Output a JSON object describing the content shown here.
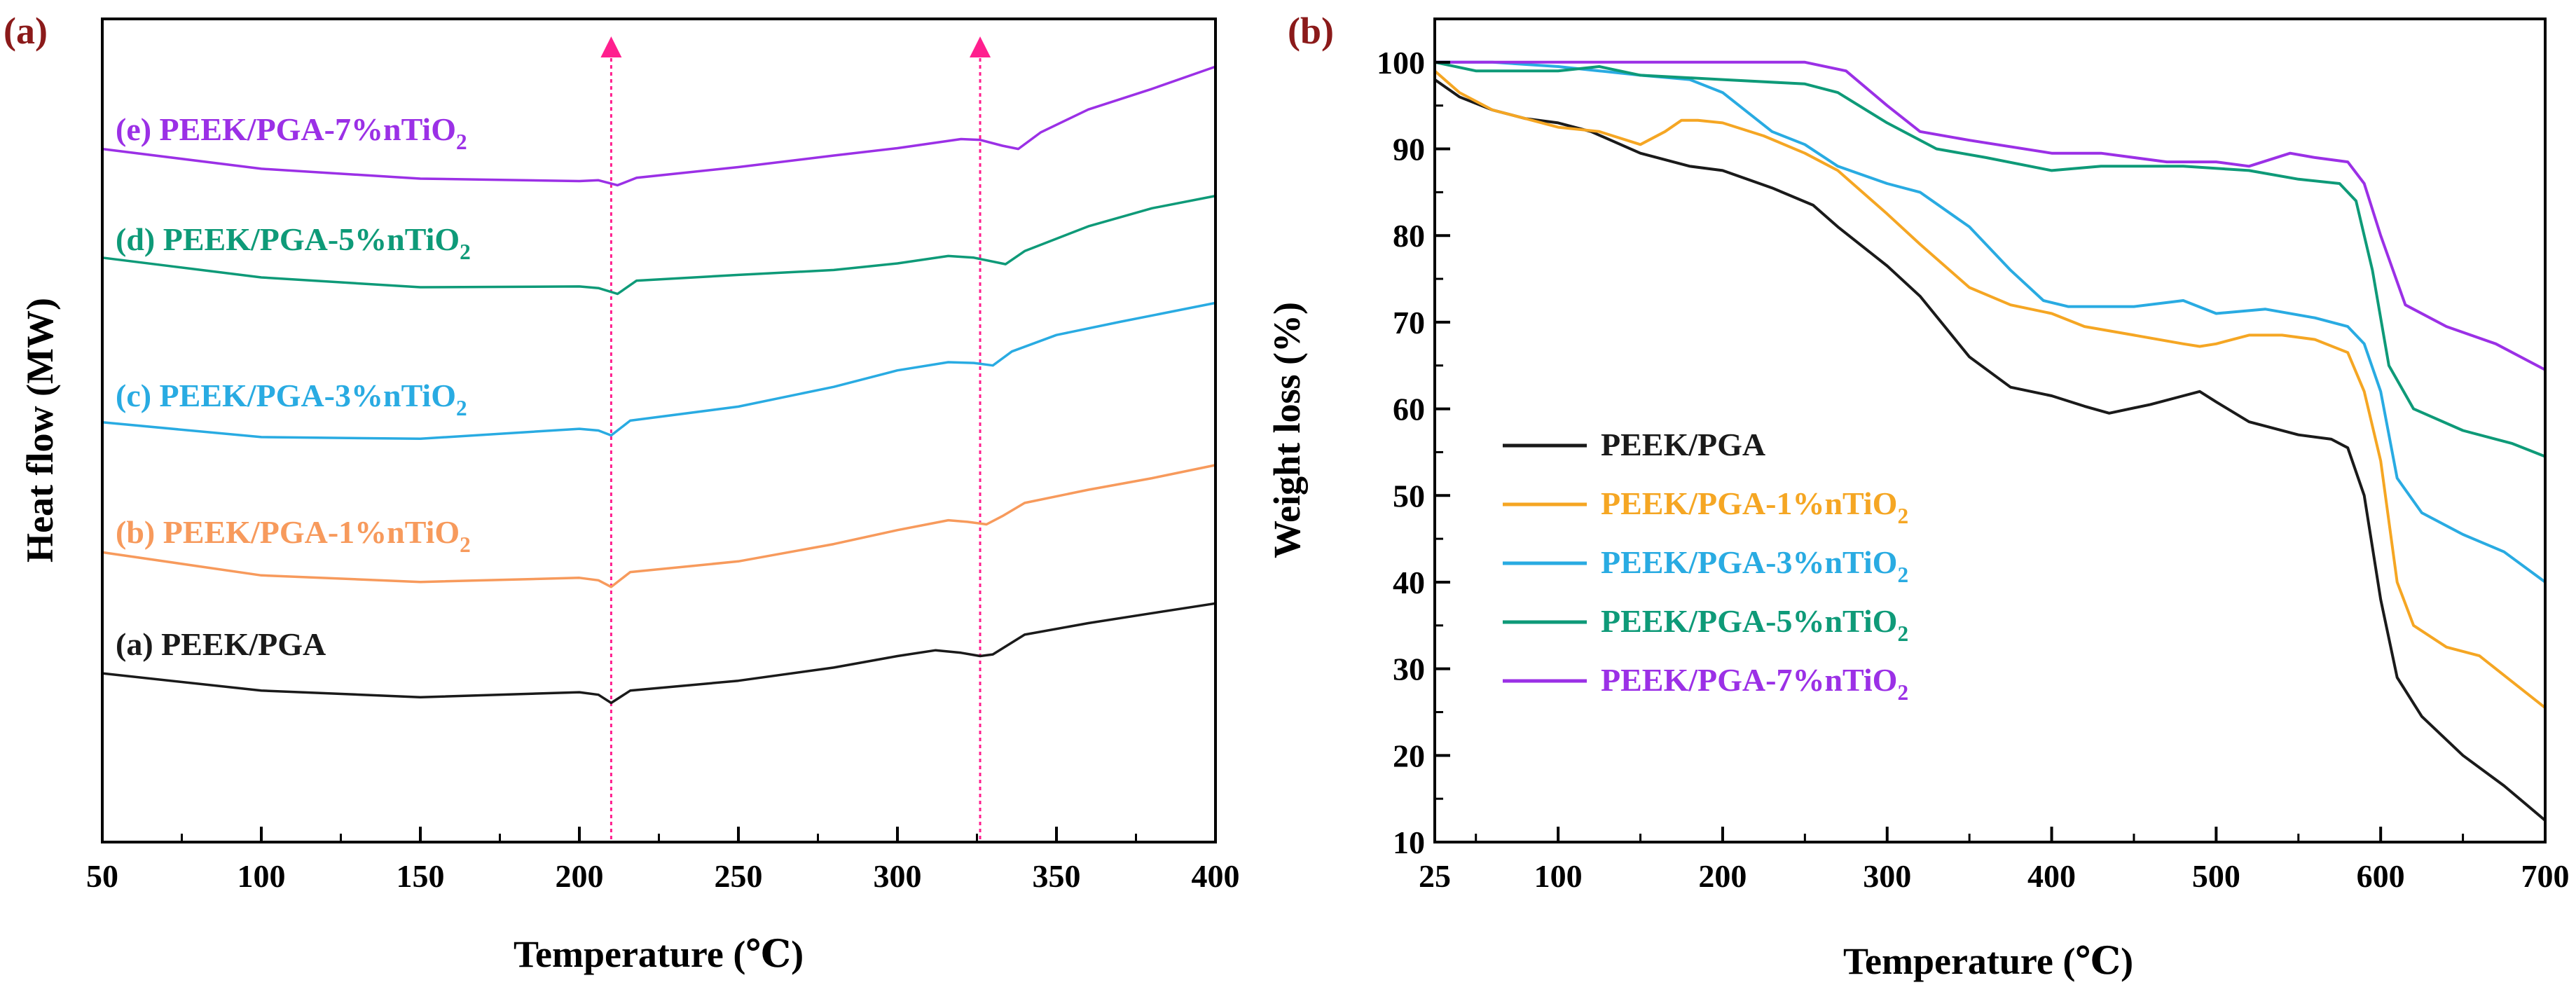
{
  "colors": {
    "black": "#1a1a1a",
    "orange": "#f5a623",
    "orange_dsc": "#f79a5c",
    "cyan": "#29abe2",
    "green": "#0e9a78",
    "purple": "#9b30e6",
    "panel_label": "#8b1a1a",
    "marker": "#ff1f8e"
  },
  "chart_data": [
    {
      "id": "a",
      "panel_label": "(a)",
      "type": "line",
      "title": "",
      "xlabel": "Temperature (℃)",
      "ylabel": "Heat flow (MW)",
      "xlim": [
        50,
        400
      ],
      "ylim": [
        0,
        100
      ],
      "xticks": [
        50,
        100,
        150,
        200,
        250,
        300,
        350,
        400
      ],
      "xtick_labels": [
        "50",
        "100",
        "150",
        "200",
        "250",
        "300",
        "350",
        "400"
      ],
      "yticks_shown": false,
      "markers": [
        210,
        326
      ],
      "series": [
        {
          "name": "(a) PEEK/PGA",
          "label_main": "(a) PEEK/PGA",
          "label_sub": "",
          "color": "black",
          "points": [
            [
              50,
              20.5
            ],
            [
              100,
              18.4
            ],
            [
              150,
              17.6
            ],
            [
              200,
              18.2
            ],
            [
              206,
              17.9
            ],
            [
              210,
              16.9
            ],
            [
              216,
              18.4
            ],
            [
              250,
              19.6
            ],
            [
              280,
              21.2
            ],
            [
              300,
              22.6
            ],
            [
              312,
              23.3
            ],
            [
              320,
              23.0
            ],
            [
              326,
              22.6
            ],
            [
              330,
              22.8
            ],
            [
              340,
              25.2
            ],
            [
              360,
              26.6
            ],
            [
              380,
              27.8
            ],
            [
              400,
              29.0
            ]
          ],
          "label_at": [
            54,
            75.5
          ]
        },
        {
          "name": "(b) PEEK/PGA-1%nTiO2",
          "label_main": "(b) PEEK/PGA-1%nTiO",
          "label_sub": "2",
          "color": "orange_dsc",
          "points": [
            [
              50,
              35.2
            ],
            [
              100,
              32.4
            ],
            [
              150,
              31.6
            ],
            [
              200,
              32.1
            ],
            [
              206,
              31.8
            ],
            [
              210,
              31.0
            ],
            [
              216,
              32.8
            ],
            [
              250,
              34.1
            ],
            [
              280,
              36.2
            ],
            [
              300,
              37.9
            ],
            [
              316,
              39.1
            ],
            [
              322,
              38.9
            ],
            [
              328,
              38.6
            ],
            [
              333,
              39.6
            ],
            [
              340,
              41.2
            ],
            [
              360,
              42.8
            ],
            [
              380,
              44.2
            ],
            [
              400,
              45.8
            ]
          ],
          "label_at": [
            54,
            60.2
          ]
        },
        {
          "name": "(c) PEEK/PGA-3%nTiO2",
          "label_main": "(c) PEEK/PGA-3%nTiO",
          "label_sub": "2",
          "color": "cyan",
          "points": [
            [
              50,
              51.0
            ],
            [
              100,
              49.2
            ],
            [
              150,
              49.0
            ],
            [
              200,
              50.2
            ],
            [
              206,
              50.0
            ],
            [
              210,
              49.4
            ],
            [
              216,
              51.2
            ],
            [
              250,
              52.9
            ],
            [
              280,
              55.3
            ],
            [
              300,
              57.3
            ],
            [
              316,
              58.3
            ],
            [
              324,
              58.2
            ],
            [
              330,
              57.9
            ],
            [
              336,
              59.6
            ],
            [
              350,
              61.6
            ],
            [
              370,
              63.2
            ],
            [
              400,
              65.5
            ]
          ],
          "label_at": [
            54,
            75.0
          ]
        },
        {
          "name": "(d) PEEK/PGA-5%nTiO2",
          "label_main": "(d) PEEK/PGA-5%nTiO",
          "label_sub": "2",
          "color": "green",
          "points": [
            [
              50,
              71.0
            ],
            [
              100,
              68.6
            ],
            [
              150,
              67.4
            ],
            [
              200,
              67.5
            ],
            [
              206,
              67.3
            ],
            [
              212,
              66.6
            ],
            [
              218,
              68.2
            ],
            [
              250,
              68.9
            ],
            [
              280,
              69.5
            ],
            [
              300,
              70.3
            ],
            [
              316,
              71.2
            ],
            [
              324,
              71.0
            ],
            [
              334,
              70.2
            ],
            [
              340,
              71.8
            ],
            [
              360,
              74.8
            ],
            [
              380,
              77.0
            ],
            [
              400,
              78.5
            ]
          ],
          "label_at": [
            54,
            72.9
          ]
        },
        {
          "name": "(e) PEEK/PGA-7%nTiO2",
          "label_main": "(e) PEEK/PGA-7%nTiO",
          "label_sub": "2",
          "color": "purple",
          "points": [
            [
              50,
              84.2
            ],
            [
              100,
              81.8
            ],
            [
              150,
              80.6
            ],
            [
              200,
              80.3
            ],
            [
              206,
              80.4
            ],
            [
              212,
              79.8
            ],
            [
              218,
              80.7
            ],
            [
              250,
              82.0
            ],
            [
              280,
              83.4
            ],
            [
              300,
              84.3
            ],
            [
              320,
              85.4
            ],
            [
              326,
              85.3
            ],
            [
              333,
              84.6
            ],
            [
              338,
              84.2
            ],
            [
              345,
              86.2
            ],
            [
              360,
              89.0
            ],
            [
              380,
              91.5
            ],
            [
              400,
              94.2
            ]
          ],
          "label_at": [
            54,
            86.0
          ]
        }
      ]
    },
    {
      "id": "b",
      "panel_label": "(b)",
      "type": "line",
      "title": "",
      "xlabel": "Temperature (℃)",
      "ylabel": "Weight loss (%)",
      "xlim": [
        25,
        700
      ],
      "ylim": [
        10,
        105
      ],
      "xticks": [
        25,
        100,
        200,
        300,
        400,
        500,
        600,
        700
      ],
      "xtick_labels": [
        "25",
        "100",
        "200",
        "300",
        "400",
        "500",
        "600",
        "700"
      ],
      "yticks": [
        10,
        20,
        30,
        40,
        50,
        60,
        70,
        80,
        90,
        100
      ],
      "ytick_labels": [
        "10",
        "20",
        "30",
        "40",
        "50",
        "60",
        "70",
        "80",
        "90",
        "100"
      ],
      "legend_position": "lower-left",
      "series": [
        {
          "name": "PEEK/PGA",
          "label_main": "PEEK/PGA",
          "label_sub": "",
          "color": "black",
          "points": [
            [
              25,
              98
            ],
            [
              40,
              96
            ],
            [
              60,
              94.5
            ],
            [
              80,
              93.5
            ],
            [
              100,
              93
            ],
            [
              120,
              92
            ],
            [
              150,
              89.5
            ],
            [
              180,
              88
            ],
            [
              200,
              87.5
            ],
            [
              230,
              85.5
            ],
            [
              255,
              83.5
            ],
            [
              270,
              81
            ],
            [
              300,
              76.5
            ],
            [
              320,
              73
            ],
            [
              350,
              66
            ],
            [
              375,
              62.5
            ],
            [
              400,
              61.5
            ],
            [
              420,
              60.3
            ],
            [
              435,
              59.5
            ],
            [
              460,
              60.5
            ],
            [
              480,
              61.5
            ],
            [
              490,
              62
            ],
            [
              500,
              60.8
            ],
            [
              520,
              58.5
            ],
            [
              550,
              57
            ],
            [
              570,
              56.5
            ],
            [
              580,
              55.5
            ],
            [
              590,
              50
            ],
            [
              600,
              38
            ],
            [
              610,
              29
            ],
            [
              625,
              24.5
            ],
            [
              650,
              20
            ],
            [
              675,
              16.5
            ],
            [
              700,
              12.5
            ]
          ]
        },
        {
          "name": "PEEK/PGA-1%nTiO2",
          "label_main": "PEEK/PGA-1%nTiO",
          "label_sub": "2",
          "color": "orange",
          "points": [
            [
              25,
              99
            ],
            [
              40,
              96.5
            ],
            [
              60,
              94.5
            ],
            [
              80,
              93.5
            ],
            [
              100,
              92.5
            ],
            [
              125,
              92
            ],
            [
              150,
              90.5
            ],
            [
              165,
              92
            ],
            [
              175,
              93.3
            ],
            [
              185,
              93.3
            ],
            [
              200,
              93
            ],
            [
              225,
              91.5
            ],
            [
              250,
              89.5
            ],
            [
              270,
              87.5
            ],
            [
              300,
              82.5
            ],
            [
              320,
              79
            ],
            [
              350,
              74
            ],
            [
              375,
              72
            ],
            [
              400,
              71
            ],
            [
              420,
              69.5
            ],
            [
              450,
              68.5
            ],
            [
              480,
              67.5
            ],
            [
              490,
              67.2
            ],
            [
              500,
              67.5
            ],
            [
              520,
              68.5
            ],
            [
              540,
              68.5
            ],
            [
              560,
              68
            ],
            [
              580,
              66.5
            ],
            [
              590,
              62
            ],
            [
              600,
              54
            ],
            [
              610,
              40
            ],
            [
              620,
              35
            ],
            [
              640,
              32.5
            ],
            [
              660,
              31.5
            ],
            [
              680,
              28.5
            ],
            [
              700,
              25.5
            ]
          ]
        },
        {
          "name": "PEEK/PGA-3%nTiO2",
          "label_main": "PEEK/PGA-3%nTiO",
          "label_sub": "2",
          "color": "cyan",
          "points": [
            [
              25,
              100
            ],
            [
              60,
              100
            ],
            [
              100,
              99.5
            ],
            [
              125,
              99
            ],
            [
              150,
              98.5
            ],
            [
              180,
              98
            ],
            [
              200,
              96.5
            ],
            [
              230,
              92
            ],
            [
              250,
              90.5
            ],
            [
              270,
              88
            ],
            [
              300,
              86
            ],
            [
              320,
              85
            ],
            [
              350,
              81
            ],
            [
              375,
              76
            ],
            [
              395,
              72.5
            ],
            [
              410,
              71.8
            ],
            [
              450,
              71.8
            ],
            [
              480,
              72.5
            ],
            [
              500,
              71
            ],
            [
              530,
              71.5
            ],
            [
              560,
              70.5
            ],
            [
              580,
              69.5
            ],
            [
              590,
              67.5
            ],
            [
              600,
              62
            ],
            [
              610,
              52
            ],
            [
              625,
              48
            ],
            [
              650,
              45.5
            ],
            [
              675,
              43.5
            ],
            [
              700,
              40
            ]
          ]
        },
        {
          "name": "PEEK/PGA-5%nTiO2",
          "label_main": "PEEK/PGA-5%nTiO",
          "label_sub": "2",
          "color": "green",
          "points": [
            [
              25,
              100
            ],
            [
              50,
              99
            ],
            [
              75,
              99
            ],
            [
              100,
              99
            ],
            [
              125,
              99.5
            ],
            [
              150,
              98.5
            ],
            [
              200,
              98
            ],
            [
              250,
              97.5
            ],
            [
              270,
              96.5
            ],
            [
              300,
              93
            ],
            [
              330,
              90
            ],
            [
              360,
              89
            ],
            [
              400,
              87.5
            ],
            [
              430,
              88
            ],
            [
              480,
              88
            ],
            [
              520,
              87.5
            ],
            [
              550,
              86.5
            ],
            [
              575,
              86
            ],
            [
              585,
              84
            ],
            [
              595,
              76
            ],
            [
              605,
              65
            ],
            [
              620,
              60
            ],
            [
              650,
              57.5
            ],
            [
              680,
              56
            ],
            [
              700,
              54.5
            ]
          ]
        },
        {
          "name": "PEEK/PGA-7%nTiO2",
          "label_main": "PEEK/PGA-7%nTiO",
          "label_sub": "2",
          "color": "purple",
          "points": [
            [
              25,
              100
            ],
            [
              100,
              100
            ],
            [
              150,
              100
            ],
            [
              200,
              100
            ],
            [
              250,
              100
            ],
            [
              275,
              99
            ],
            [
              300,
              95
            ],
            [
              320,
              92
            ],
            [
              350,
              91
            ],
            [
              400,
              89.5
            ],
            [
              430,
              89.5
            ],
            [
              470,
              88.5
            ],
            [
              500,
              88.5
            ],
            [
              520,
              88
            ],
            [
              545,
              89.5
            ],
            [
              560,
              89
            ],
            [
              580,
              88.5
            ],
            [
              590,
              86
            ],
            [
              600,
              80
            ],
            [
              615,
              72
            ],
            [
              640,
              69.5
            ],
            [
              670,
              67.5
            ],
            [
              700,
              64.5
            ]
          ]
        }
      ]
    }
  ]
}
